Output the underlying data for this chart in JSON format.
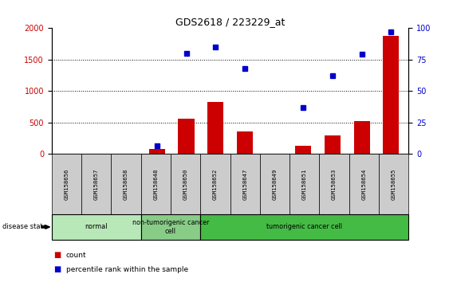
{
  "title": "GDS2618 / 223229_at",
  "samples": [
    "GSM158656",
    "GSM158657",
    "GSM158658",
    "GSM158648",
    "GSM158650",
    "GSM158652",
    "GSM158647",
    "GSM158649",
    "GSM158651",
    "GSM158653",
    "GSM158654",
    "GSM158655"
  ],
  "counts": [
    0,
    0,
    0,
    70,
    560,
    830,
    350,
    0,
    120,
    295,
    520,
    1880
  ],
  "percentile": [
    null,
    null,
    null,
    6,
    80,
    85,
    68,
    null,
    37,
    62,
    79,
    97
  ],
  "ylim_left": [
    0,
    2000
  ],
  "ylim_right": [
    0,
    100
  ],
  "yticks_left": [
    0,
    500,
    1000,
    1500,
    2000
  ],
  "yticks_right": [
    0,
    25,
    50,
    75,
    100
  ],
  "bar_color": "#cc0000",
  "dot_color": "#0000cc",
  "groups": [
    {
      "label": "normal",
      "start": 0,
      "end": 3,
      "color": "#b8e8b8"
    },
    {
      "label": "non-tumorigenic cancer\ncell",
      "start": 3,
      "end": 5,
      "color": "#88cc88"
    },
    {
      "label": "tumorigenic cancer cell",
      "start": 5,
      "end": 12,
      "color": "#44bb44"
    }
  ],
  "disease_state_label": "disease state",
  "legend_count_label": "count",
  "legend_percentile_label": "percentile rank within the sample",
  "tick_bg_color": "#cccccc",
  "figsize": [
    5.63,
    3.54
  ],
  "dpi": 100
}
